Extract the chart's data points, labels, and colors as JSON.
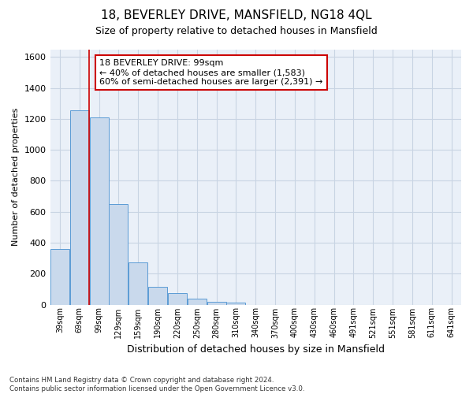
{
  "title": "18, BEVERLEY DRIVE, MANSFIELD, NG18 4QL",
  "subtitle": "Size of property relative to detached houses in Mansfield",
  "xlabel": "Distribution of detached houses by size in Mansfield",
  "ylabel": "Number of detached properties",
  "footnote": "Contains HM Land Registry data © Crown copyright and database right 2024.\nContains public sector information licensed under the Open Government Licence v3.0.",
  "bar_color": "#c9d9ec",
  "bar_edge_color": "#5b9bd5",
  "grid_color": "#c8d4e3",
  "background_color": "#eaf0f8",
  "annotation_box_color": "#cc0000",
  "red_line_x": 1.5,
  "annotation_title": "18 BEVERLEY DRIVE: 99sqm",
  "annotation_line1": "← 40% of detached houses are smaller (1,583)",
  "annotation_line2": "60% of semi-detached houses are larger (2,391) →",
  "categories": [
    "39sqm",
    "69sqm",
    "99sqm",
    "129sqm",
    "159sqm",
    "190sqm",
    "220sqm",
    "250sqm",
    "280sqm",
    "310sqm",
    "340sqm",
    "370sqm",
    "400sqm",
    "430sqm",
    "460sqm",
    "491sqm",
    "521sqm",
    "551sqm",
    "581sqm",
    "611sqm",
    "641sqm"
  ],
  "values": [
    360,
    1255,
    1210,
    650,
    270,
    115,
    75,
    40,
    20,
    15,
    0,
    0,
    0,
    0,
    0,
    0,
    0,
    0,
    0,
    0,
    0
  ],
  "ylim": [
    0,
    1650
  ],
  "yticks": [
    0,
    200,
    400,
    600,
    800,
    1000,
    1200,
    1400,
    1600
  ]
}
